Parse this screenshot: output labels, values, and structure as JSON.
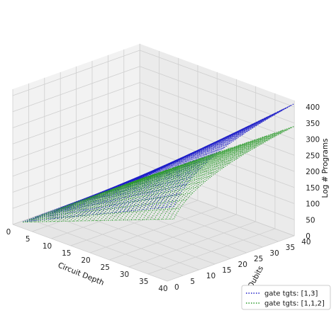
{
  "chart_data": {
    "type": "scatter3d",
    "xlabel": "Circuit Depth",
    "ylabel": "Qubits",
    "zlabel": "Log # Programs",
    "x_ticks": [
      0,
      5,
      10,
      15,
      20,
      25,
      30,
      35,
      40
    ],
    "y_ticks": [
      0,
      5,
      10,
      15,
      20,
      25,
      30,
      35,
      40
    ],
    "z_ticks": [
      0,
      50,
      100,
      150,
      200,
      250,
      300,
      350,
      400
    ],
    "xlim": [
      0,
      40
    ],
    "ylim": [
      0,
      40
    ],
    "zlim": [
      0,
      420
    ],
    "grid": true,
    "legend_position": "lower-right",
    "series": [
      {
        "name": "gate tgts: [1,3]",
        "color": "#1f1fc8",
        "linestyle": "dotted",
        "description_of_surface": "z grows roughly linearly with depth and with log of qubits; max ~410 at depth 40, qubits 40",
        "samples": [
          {
            "depth": 40,
            "qubits": 40,
            "log_programs": 410
          },
          {
            "depth": 40,
            "qubits": 20,
            "log_programs": 345
          },
          {
            "depth": 40,
            "qubits": 2,
            "log_programs": 170
          },
          {
            "depth": 20,
            "qubits": 40,
            "log_programs": 205
          },
          {
            "depth": 10,
            "qubits": 40,
            "log_programs": 103
          },
          {
            "depth": 1,
            "qubits": 2,
            "log_programs": 4
          }
        ]
      },
      {
        "name": "gate tgts: [1,1,2]",
        "color": "#2a9a2a",
        "linestyle": "dotted",
        "description_of_surface": "same shape as [1,3] but lower; max ~340 at depth 40, qubits 40",
        "samples": [
          {
            "depth": 40,
            "qubits": 40,
            "log_programs": 340
          },
          {
            "depth": 40,
            "qubits": 20,
            "log_programs": 285
          },
          {
            "depth": 40,
            "qubits": 2,
            "log_programs": 140
          },
          {
            "depth": 20,
            "qubits": 40,
            "log_programs": 170
          },
          {
            "depth": 10,
            "qubits": 40,
            "log_programs": 85
          },
          {
            "depth": 1,
            "qubits": 2,
            "log_programs": 3
          }
        ]
      }
    ]
  }
}
